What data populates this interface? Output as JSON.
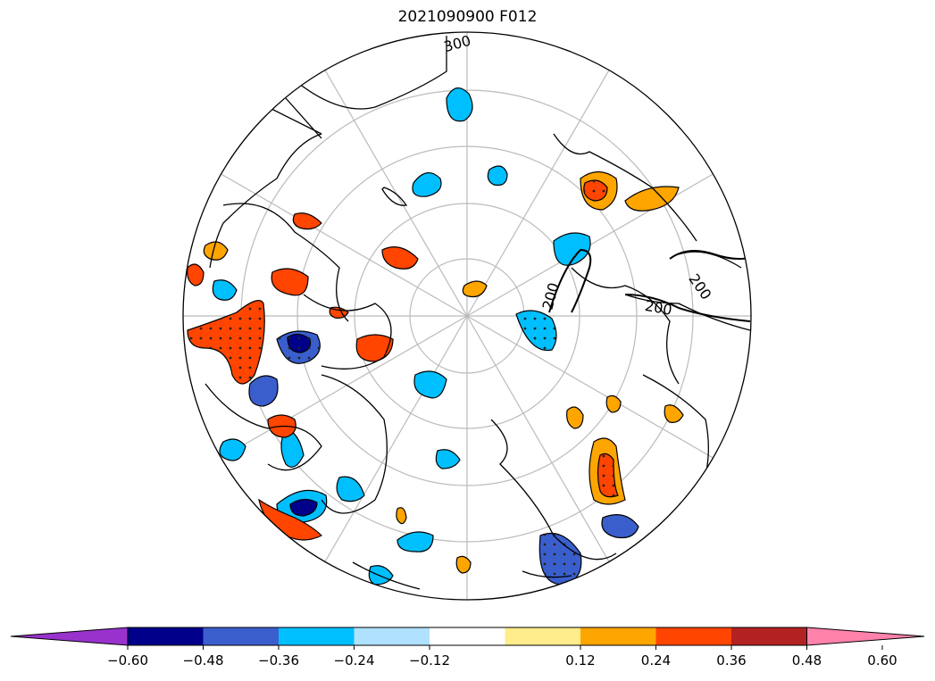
{
  "title": "2021090900 F012",
  "map": {
    "projection": "north-polar-stereographic",
    "contour_labels": [
      "200",
      "200",
      "200",
      "300"
    ],
    "features": [
      "coastlines",
      "graticule",
      "shaded-anomaly",
      "significance-stipple"
    ]
  },
  "colorbar": {
    "colors": [
      "#9932CC",
      "#00008B",
      "#3A5FCD",
      "#00BFFF",
      "#B0E2FF",
      "#FFFFFF",
      "#FFEC8B",
      "#FFA500",
      "#FF4500",
      "#B22222",
      "#FF82AB"
    ],
    "tick_labels": [
      "−0.60",
      "−0.48",
      "−0.36",
      "−0.24",
      "−0.12",
      "0.12",
      "0.24",
      "0.36",
      "0.48",
      "0.60"
    ],
    "extend": "both"
  },
  "colors": {
    "positive_strong": "#FF4500",
    "positive": "#FFA500",
    "positive_weak": "#FFEC8B",
    "negative_strong": "#00008B",
    "negative_mid": "#3A5FCD",
    "negative": "#00BFFF",
    "negative_weak": "#B0E2FF",
    "grid": "#BBBBBB"
  }
}
